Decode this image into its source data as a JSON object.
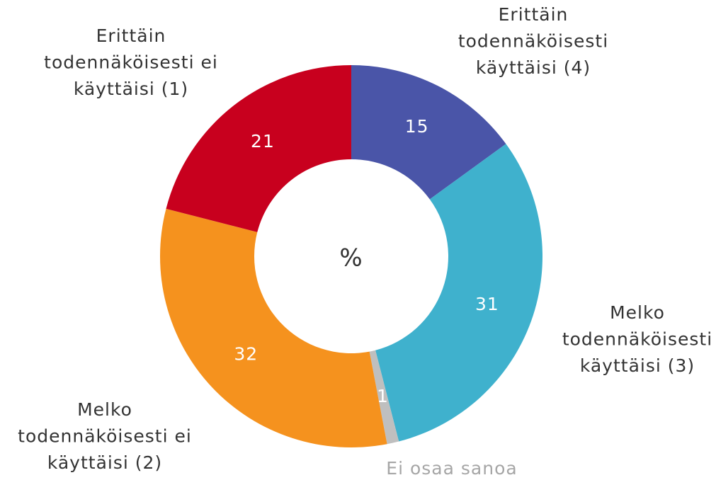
{
  "chart_data": {
    "type": "donut",
    "center_label": "%",
    "categories": [
      "Erittäin\ntodennäköisesti\nkäyttäisi (4)",
      "Melko\ntodennäköisesti\nkäyttäisi (3)",
      "Ei osaa sanoa",
      "Melko\ntodennäköisesti ei\nkäyttäisi (2)",
      "Erittäin\ntodennäköisesti ei\nkäyttäisi (1)"
    ],
    "values": [
      15,
      31,
      1,
      32,
      21
    ],
    "colors": [
      "#4a55a8",
      "#3fb1cd",
      "#bfbfbf",
      "#f5921e",
      "#c8001e"
    ],
    "label_colors": [
      "#333333",
      "#333333",
      "#a6a6a6",
      "#333333",
      "#333333"
    ]
  }
}
